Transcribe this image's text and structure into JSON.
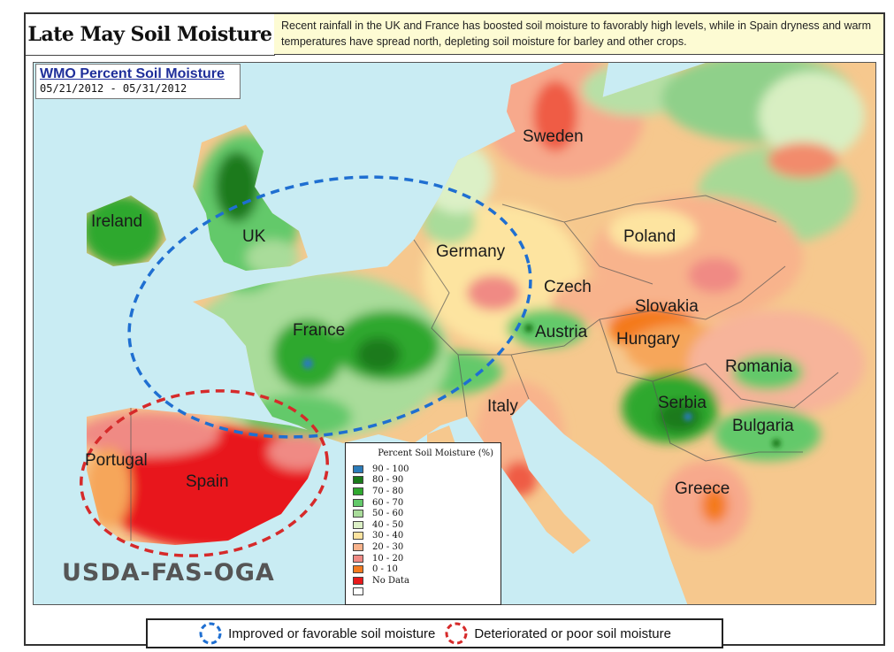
{
  "header": {
    "title": "Late May Soil Moisture",
    "description": "Recent rainfall in the UK and France has boosted soil moisture to favorably high levels, while in Spain dryness and warm temperatures have spread north, depleting soil moisture for barley and other crops."
  },
  "map_panel": {
    "title": "WMO Percent Soil Moisture",
    "date_range": "05/21/2012 - 05/31/2012",
    "watermark": "USDA-FAS-OGA"
  },
  "countries": {
    "ireland": "Ireland",
    "uk": "UK",
    "sweden": "Sweden",
    "germany": "Germany",
    "poland": "Poland",
    "czech": "Czech",
    "slovakia": "Slovakia",
    "france": "France",
    "austria": "Austria",
    "hungary": "Hungary",
    "romania": "Romania",
    "serbia": "Serbia",
    "italy": "Italy",
    "bulgaria": "Bulgaria",
    "portugal": "Portugal",
    "spain": "Spain",
    "greece": "Greece"
  },
  "legend": {
    "title": "Percent Soil Moisture (%)",
    "items": [
      {
        "label": "90 - 100",
        "color": "#2b7bb9"
      },
      {
        "label": "80 - 90",
        "color": "#1a7a1a"
      },
      {
        "label": "70 - 80",
        "color": "#2fa82f"
      },
      {
        "label": "60 - 70",
        "color": "#63c96a"
      },
      {
        "label": "50 - 60",
        "color": "#a9dc9a"
      },
      {
        "label": "40 - 50",
        "color": "#dcf0c6"
      },
      {
        "label": "30 - 40",
        "color": "#fde4a0"
      },
      {
        "label": "20 - 30",
        "color": "#f8b38c"
      },
      {
        "label": "10 - 20",
        "color": "#f08a84"
      },
      {
        "label": "0 - 10",
        "color": "#f47a1f"
      },
      {
        "label": "No Data",
        "color": "#e8191b"
      },
      {
        "label": "",
        "color": "#ffffff"
      }
    ]
  },
  "annotations": {
    "improved": {
      "label": "Improved or favorable soil moisture",
      "color": "#1f6fd1"
    },
    "deteriorated": {
      "label": "Deteriorated or poor soil moisture",
      "color": "#d62a2a"
    }
  }
}
